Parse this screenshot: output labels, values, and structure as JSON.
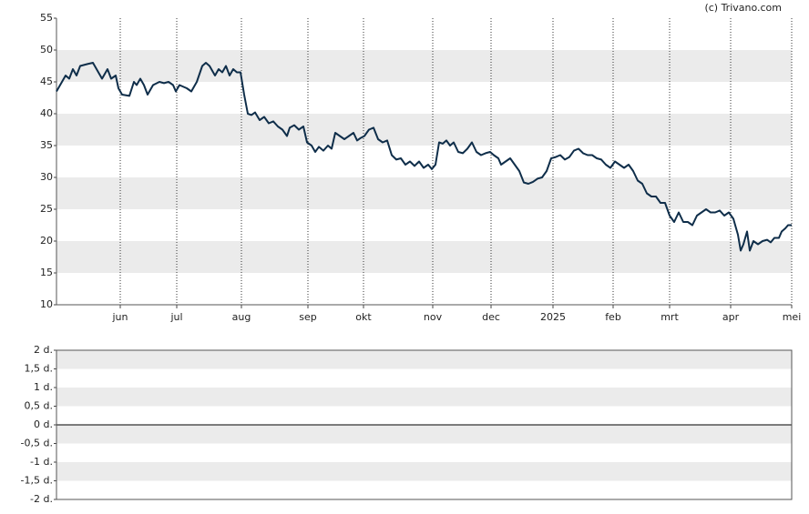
{
  "chart_data": [
    {
      "type": "line",
      "annotation": "(c) Trivano.com",
      "x": [
        0,
        6,
        10,
        14,
        18,
        22,
        26,
        34,
        40,
        44,
        50,
        56,
        60,
        65,
        68,
        72,
        80,
        85,
        88,
        92,
        96,
        100,
        106,
        113,
        118,
        123,
        128,
        131,
        135,
        143,
        148,
        154,
        160,
        164,
        168,
        174,
        178,
        182,
        186,
        190,
        194,
        198,
        202,
        206,
        210,
        214,
        218,
        223,
        228,
        233,
        238,
        243,
        248,
        253,
        256,
        261,
        266,
        271,
        275,
        280,
        284,
        288,
        293,
        298,
        302,
        306,
        311,
        316,
        321,
        326,
        330,
        334,
        338,
        343,
        348,
        353,
        358,
        363,
        368,
        373,
        378,
        383,
        388,
        393,
        398,
        403,
        408,
        412,
        416,
        420,
        424,
        428,
        432,
        436,
        441,
        446,
        451,
        456,
        461,
        466,
        471,
        476,
        480,
        485,
        488,
        493,
        498,
        503,
        508,
        513,
        518,
        523,
        528,
        533,
        538,
        543,
        548,
        553,
        558,
        563,
        568,
        573,
        578,
        583,
        588,
        593,
        598,
        603,
        608,
        613,
        618,
        623,
        628,
        633,
        638,
        643,
        648,
        653,
        658,
        663,
        668,
        673,
        678,
        683,
        688,
        693,
        698,
        703,
        708,
        713,
        718,
        723,
        728,
        733,
        738,
        743,
        748,
        751,
        754,
        758,
        761,
        765,
        770,
        775,
        780,
        784,
        788,
        793,
        796,
        800,
        803,
        807
      ],
      "series": [
        {
          "color": "#0f2e4a",
          "values": [
            43.5,
            45,
            46,
            45.5,
            47,
            46,
            47.5,
            47.8,
            48,
            47,
            45.5,
            47,
            45.5,
            46,
            44,
            43,
            42.8,
            45,
            44.5,
            45.5,
            44.5,
            43,
            44.5,
            45,
            44.8,
            45,
            44.5,
            43.5,
            44.5,
            44,
            43.5,
            45,
            47.5,
            48,
            47.5,
            46,
            47,
            46.5,
            47.5,
            46,
            47,
            46.5,
            46.5,
            43,
            40,
            39.8,
            40.2,
            39,
            39.5,
            38.5,
            38.8,
            38,
            37.5,
            36.5,
            37.8,
            38.2,
            37.5,
            38,
            35.5,
            35,
            34,
            34.8,
            34.2,
            35,
            34.5,
            37,
            36.5,
            36,
            36.5,
            37,
            35.8,
            36.2,
            36.5,
            37.5,
            37.8,
            36,
            35.5,
            35.8,
            33.5,
            32.8,
            33,
            32,
            32.5,
            31.8,
            32.5,
            31.5,
            32,
            31.3,
            32,
            35.5,
            35.3,
            35.8,
            35,
            35.5,
            34,
            33.8,
            34.5,
            35.5,
            34,
            33.5,
            33.8,
            34,
            33.5,
            33,
            32,
            32.5,
            33,
            32,
            31,
            29.2,
            29,
            29.3,
            29.8,
            30,
            31,
            33,
            33.2,
            33.5,
            32.8,
            33.2,
            34.2,
            34.5,
            33.8,
            33.5,
            33.5,
            33,
            32.8,
            32,
            31.5,
            32.5,
            32,
            31.5,
            32,
            31,
            29.5,
            29,
            27.5,
            27,
            27,
            26,
            26,
            24,
            23,
            24.5,
            23,
            23,
            22.5,
            24,
            24.5,
            25,
            24.5,
            24.5,
            24.8,
            24,
            24.5,
            23.5,
            21,
            18.5,
            19.5,
            21.5,
            18.5,
            20,
            19.5,
            20,
            20.2,
            19.8,
            20.5,
            20.5,
            21.5,
            22,
            22.5,
            22.5
          ]
        }
      ],
      "xlim": [
        0,
        807
      ],
      "xticks": [
        {
          "value": 70,
          "label": "jun"
        },
        {
          "value": 132,
          "label": "jul"
        },
        {
          "value": 203,
          "label": "aug"
        },
        {
          "value": 276,
          "label": "sep"
        },
        {
          "value": 337,
          "label": "okt"
        },
        {
          "value": 413,
          "label": "nov"
        },
        {
          "value": 477,
          "label": "dec"
        },
        {
          "value": 545,
          "label": "2025"
        },
        {
          "value": 611,
          "label": "feb"
        },
        {
          "value": 673,
          "label": "mrt"
        },
        {
          "value": 740,
          "label": "apr"
        },
        {
          "value": 807,
          "label": "mei"
        }
      ],
      "ylim": [
        10,
        55
      ],
      "yticks": [
        10,
        15,
        20,
        25,
        30,
        35,
        40,
        45,
        50,
        55
      ],
      "grid": true
    },
    {
      "type": "line",
      "series": [],
      "ylim": [
        -2,
        2
      ],
      "yticks": [
        {
          "value": -2,
          "label": "-2 d."
        },
        {
          "value": -1.5,
          "label": "-1,5 d."
        },
        {
          "value": -1,
          "label": "-1 d."
        },
        {
          "value": -0.5,
          "label": "-0,5 d."
        },
        {
          "value": 0,
          "label": "0 d."
        },
        {
          "value": 0.5,
          "label": "0,5 d."
        },
        {
          "value": 1,
          "label": "1 d."
        },
        {
          "value": 1.5,
          "label": "1,5 d."
        },
        {
          "value": 2,
          "label": "2 d."
        }
      ]
    }
  ]
}
